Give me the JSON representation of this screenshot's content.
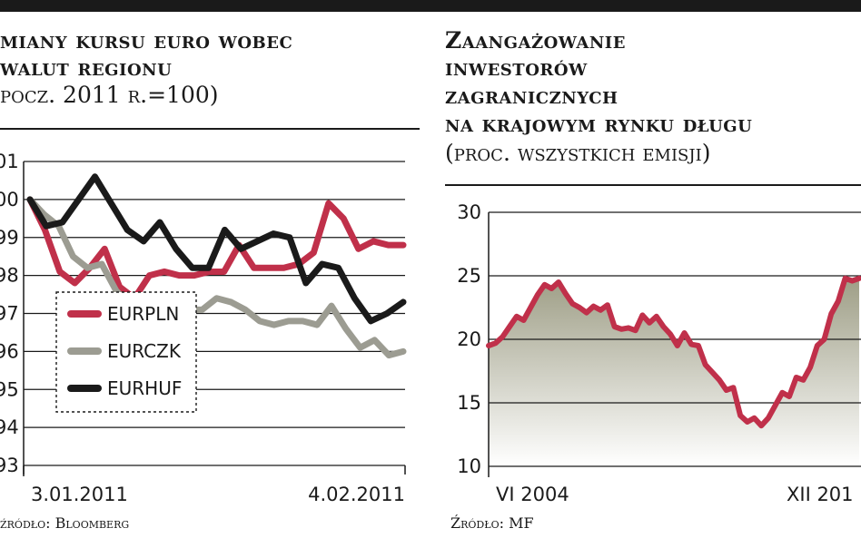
{
  "left": {
    "title_line1": "miany kursu euro wobec",
    "title_line2": "walut regionu",
    "subtitle": "pocz. 2011 r.=100)",
    "source": "źródło: Bloomberg"
  },
  "right": {
    "title_line1": "Zaangażowanie",
    "title_line2": "inwestorów",
    "title_line3": "zagranicznych",
    "title_line4": "na krajowym rynku długu",
    "subtitle": "(proc. wszystkich emisji)",
    "source": "Źródło: MF"
  },
  "chart_data": [
    {
      "type": "line",
      "y_ticks": [
        "01",
        "00",
        "99",
        "98",
        "97",
        "96",
        "95",
        "94",
        "93"
      ],
      "y_values": [
        101,
        100,
        99,
        98,
        97,
        96,
        95,
        94,
        93
      ],
      "ylim": [
        93,
        101
      ],
      "x_tick_labels": [
        "3.01.2011",
        "4.02.2011"
      ],
      "grid": true,
      "legend_position": "left",
      "series": [
        {
          "name": "EURPLN",
          "color": "#c0304a",
          "values": [
            100.0,
            99.2,
            98.1,
            97.8,
            98.2,
            98.7,
            97.7,
            97.4,
            98.0,
            98.1,
            98.0,
            98.0,
            98.1,
            98.1,
            98.8,
            98.2,
            98.2,
            98.2,
            98.3,
            98.6,
            99.9,
            99.5,
            98.7,
            98.9,
            98.8,
            98.8
          ]
        },
        {
          "name": "EURCZK",
          "color": "#9c9c92",
          "values": [
            100.0,
            99.6,
            99.3,
            98.5,
            98.2,
            98.3,
            97.6,
            97.2,
            97.4,
            97.2,
            97.2,
            97.1,
            97.1,
            97.4,
            97.3,
            97.1,
            96.8,
            96.7,
            96.8,
            96.8,
            96.7,
            97.2,
            96.6,
            96.1,
            96.3,
            95.9,
            96.0
          ]
        },
        {
          "name": "EURHUF",
          "color": "#1a1a1a",
          "values": [
            100.0,
            99.3,
            99.4,
            100.0,
            100.6,
            99.9,
            99.2,
            98.9,
            99.4,
            98.7,
            98.2,
            98.2,
            99.2,
            98.7,
            98.9,
            99.1,
            99.0,
            97.8,
            98.3,
            98.2,
            97.4,
            96.8,
            97.0,
            97.3
          ]
        }
      ]
    },
    {
      "type": "area",
      "y_ticks": [
        "30",
        "25",
        "20",
        "15",
        "10"
      ],
      "y_values": [
        30,
        25,
        20,
        15,
        10
      ],
      "ylim": [
        10,
        30
      ],
      "x_tick_labels": [
        "VI 2004",
        "XII 201"
      ],
      "grid": true,
      "series": [
        {
          "name": "",
          "color": "#c0304a",
          "values": [
            19.5,
            19.7,
            20.2,
            21.0,
            21.8,
            21.5,
            22.5,
            23.5,
            24.3,
            24.0,
            24.5,
            23.6,
            22.8,
            22.5,
            22.1,
            22.6,
            22.3,
            22.7,
            21.0,
            20.8,
            20.9,
            20.7,
            21.9,
            21.3,
            21.8,
            21.0,
            20.4,
            19.5,
            20.5,
            19.6,
            19.5,
            18.0,
            17.4,
            16.8,
            16.0,
            16.2,
            14.0,
            13.5,
            13.8,
            13.2,
            13.8,
            14.8,
            15.8,
            15.5,
            17.0,
            16.8,
            17.8,
            19.5,
            20.0,
            22.0,
            23.0,
            24.8,
            24.6,
            24.8
          ]
        }
      ]
    }
  ]
}
